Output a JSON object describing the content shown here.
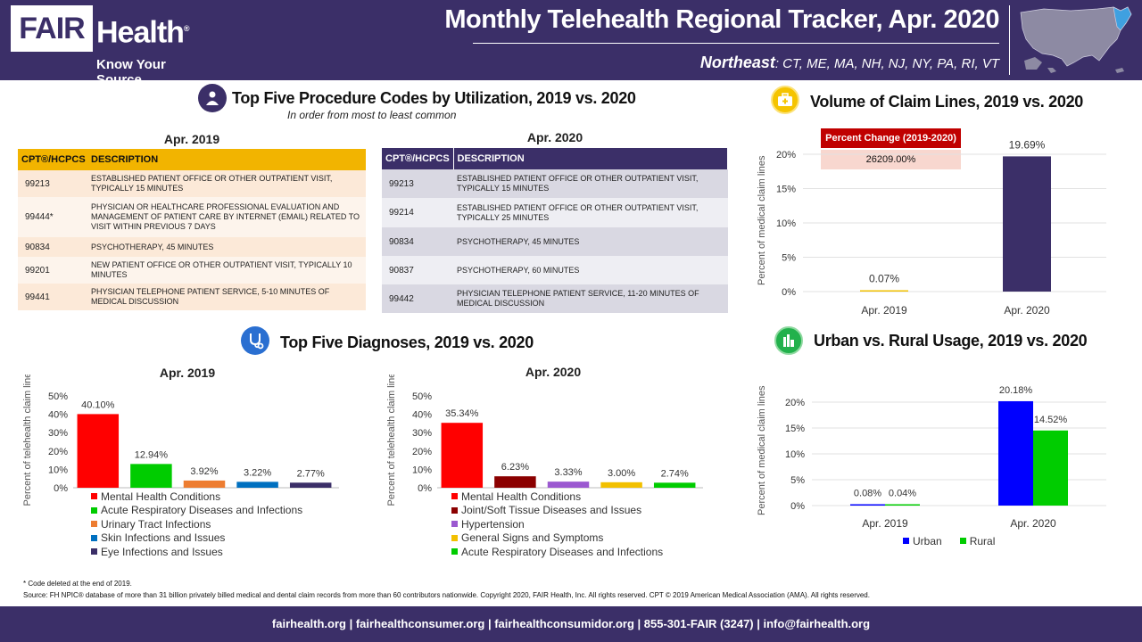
{
  "header": {
    "logo_fair": "FAIR",
    "logo_health": "Health",
    "logo_reg": "®",
    "logo_tagline": "Know Your Source",
    "title": "Monthly Telehealth Regional Tracker, Apr. 2020",
    "region_name": "Northeast",
    "region_states": ": CT, ME, MA, NH, NJ, NY, PA, RI, VT"
  },
  "procedures": {
    "title": "Top Five Procedure Codes by Utilization, 2019 vs. 2020",
    "subtitle": "In order from most to least common",
    "col_code": "CPT®/HCPCS",
    "col_desc": "DESCRIPTION",
    "t2019": {
      "title": "Apr. 2019",
      "rows": [
        {
          "code": "99213",
          "desc": "ESTABLISHED PATIENT OFFICE OR OTHER OUTPATIENT VISIT, TYPICALLY 15 MINUTES"
        },
        {
          "code": "99444*",
          "desc": "PHYSICIAN OR HEALTHCARE PROFESSIONAL EVALUATION AND MANAGEMENT OF PATIENT CARE BY INTERNET (EMAIL) RELATED TO VISIT WITHIN PREVIOUS 7 DAYS"
        },
        {
          "code": "90834",
          "desc": "PSYCHOTHERAPY, 45 MINUTES"
        },
        {
          "code": "99201",
          "desc": "NEW PATIENT OFFICE OR OTHER OUTPATIENT VISIT, TYPICALLY 10 MINUTES"
        },
        {
          "code": "99441",
          "desc": "PHYSICIAN TELEPHONE PATIENT SERVICE, 5-10 MINUTES OF MEDICAL DISCUSSION"
        }
      ]
    },
    "t2020": {
      "title": "Apr. 2020",
      "rows": [
        {
          "code": "99213",
          "desc": "ESTABLISHED PATIENT OFFICE OR OTHER OUTPATIENT VISIT, TYPICALLY 15 MINUTES"
        },
        {
          "code": "99214",
          "desc": "ESTABLISHED PATIENT OFFICE OR OTHER OUTPATIENT VISIT, TYPICALLY 25 MINUTES"
        },
        {
          "code": "90834",
          "desc": "PSYCHOTHERAPY, 45 MINUTES"
        },
        {
          "code": "90837",
          "desc": "PSYCHOTHERAPY, 60 MINUTES"
        },
        {
          "code": "99442",
          "desc": "PHYSICIAN TELEPHONE PATIENT SERVICE, 11-20 MINUTES OF MEDICAL DISCUSSION"
        }
      ]
    }
  },
  "diagnoses": {
    "title": "Top Five Diagnoses, 2019 vs. 2020"
  },
  "volume": {
    "title": "Volume of Claim Lines, 2019 vs. 2020",
    "pct_change_label": "Percent Change (2019-2020)",
    "pct_change_value": "26209.00%"
  },
  "urban_rural": {
    "title": "Urban vs. Rural Usage, 2019 vs. 2020"
  },
  "chart_data": [
    {
      "id": "diag2019",
      "type": "bar",
      "title": "Apr. 2019",
      "ylabel": "Percent of telehealth claim lines",
      "ylim": [
        0,
        50
      ],
      "yticks": [
        "50%",
        "40%",
        "30%",
        "20%",
        "10%",
        "0%"
      ],
      "categories": [
        "Mental Health Conditions",
        "Acute Respiratory Diseases and Infections",
        "Urinary Tract Infections",
        "Skin Infections and Issues",
        "Eye Infections and Issues"
      ],
      "values": [
        40.1,
        12.94,
        3.92,
        3.22,
        2.77
      ],
      "labels": [
        "40.10%",
        "12.94%",
        "3.92%",
        "3.22%",
        "2.77%"
      ],
      "colors": [
        "#ff0000",
        "#00cc00",
        "#ed7d31",
        "#0070c0",
        "#3b2f68"
      ]
    },
    {
      "id": "diag2020",
      "type": "bar",
      "title": "Apr. 2020",
      "ylabel": "Percent of telehealth claim lines",
      "ylim": [
        0,
        50
      ],
      "yticks": [
        "50%",
        "40%",
        "30%",
        "20%",
        "10%",
        "0%"
      ],
      "categories": [
        "Mental Health Conditions",
        "Joint/Soft Tissue Diseases and Issues",
        "Hypertension",
        "General Signs and Symptoms",
        "Acute Respiratory Diseases and Infections"
      ],
      "values": [
        35.34,
        6.23,
        3.33,
        3.0,
        2.74
      ],
      "labels": [
        "35.34%",
        "6.23%",
        "3.33%",
        "3.00%",
        "2.74%"
      ],
      "colors": [
        "#ff0000",
        "#8b0000",
        "#9b59d0",
        "#f2c000",
        "#00cc00"
      ]
    },
    {
      "id": "volume",
      "type": "bar",
      "title": "Volume of Claim Lines, 2019 vs. 2020",
      "ylabel": "Percent of medical claim lines",
      "ylim": [
        0,
        22
      ],
      "yticks": [
        "20%",
        "15%",
        "10%",
        "5%",
        "0%"
      ],
      "ytick_values": [
        20,
        15,
        10,
        5,
        0
      ],
      "categories": [
        "Apr. 2019",
        "Apr. 2020"
      ],
      "values": [
        0.07,
        19.69
      ],
      "labels": [
        "0.07%",
        "19.69%"
      ],
      "colors": [
        "#f2c000",
        "#3b2f68"
      ]
    },
    {
      "id": "urbanrural",
      "type": "bar",
      "title": "Urban vs. Rural Usage, 2019 vs. 2020",
      "ylabel": "Percent of medical claim lines",
      "ylim": [
        0,
        22
      ],
      "yticks": [
        "20%",
        "15%",
        "10%",
        "5%",
        "0%"
      ],
      "ytick_values": [
        20,
        15,
        10,
        5,
        0
      ],
      "categories": [
        "Apr. 2019",
        "Apr. 2020"
      ],
      "series": [
        {
          "name": "Urban",
          "values": [
            0.08,
            20.18
          ],
          "labels": [
            "0.08%",
            "20.18%"
          ],
          "color": "#0000ff"
        },
        {
          "name": "Rural",
          "values": [
            0.04,
            14.52
          ],
          "labels": [
            "0.04%",
            "14.52%"
          ],
          "color": "#00cc00"
        }
      ]
    }
  ],
  "footer": {
    "footnote": "* Code deleted at the end of 2019.",
    "source": "Source: FH NPIC® database of more than 31 billion privately billed medical and dental claim records from more than 60 contributors nationwide. Copyright 2020, FAIR Health, Inc. All rights reserved. CPT © 2019 American Medical Association (AMA). All rights reserved.",
    "links": "fairhealth.org  |  fairhealthconsumer.org  |  fairhealthconsumidor.org  |  855-301-FAIR (3247)  |  info@fairhealth.org"
  }
}
